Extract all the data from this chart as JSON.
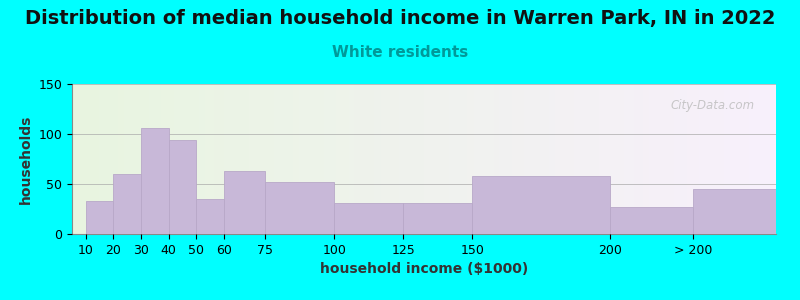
{
  "title": "Distribution of median household income in Warren Park, IN in 2022",
  "subtitle": "White residents",
  "xlabel": "household income ($1000)",
  "ylabel": "households",
  "background_color": "#00FFFF",
  "bar_color": "#c8b8d8",
  "bar_edgecolor": "#b8a8c8",
  "categories": [
    "10",
    "20",
    "30",
    "40",
    "50",
    "60",
    "75",
    "100",
    "125",
    "150",
    "200",
    "> 200"
  ],
  "x_positions": [
    10,
    20,
    30,
    40,
    50,
    60,
    75,
    100,
    125,
    150,
    200,
    230
  ],
  "x_widths": [
    10,
    10,
    10,
    10,
    10,
    15,
    25,
    25,
    25,
    50,
    30,
    30
  ],
  "values": [
    33,
    60,
    106,
    94,
    35,
    63,
    52,
    31,
    31,
    58,
    27,
    45
  ],
  "ylim": [
    0,
    150
  ],
  "yticks": [
    0,
    50,
    100,
    150
  ],
  "xlim_left": 5,
  "xlim_right": 260,
  "title_fontsize": 14,
  "subtitle_fontsize": 11,
  "subtitle_color": "#009999",
  "axis_label_fontsize": 10,
  "tick_fontsize": 9,
  "watermark": "City-Data.com",
  "xtick_positions": [
    10,
    20,
    30,
    40,
    50,
    60,
    75,
    100,
    125,
    150,
    200,
    230
  ],
  "xtick_labels": [
    "10",
    "20",
    "30",
    "40",
    "50",
    "60",
    "75",
    "100",
    "125",
    "150",
    "200",
    "> 200"
  ]
}
